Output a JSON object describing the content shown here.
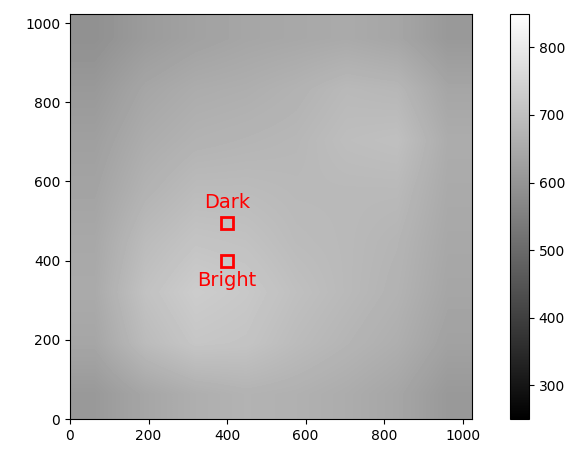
{
  "chart_data": {
    "type": "heatmap",
    "xlim": [
      0,
      1024
    ],
    "ylim": [
      0,
      1024
    ],
    "xticks": [
      0,
      200,
      400,
      600,
      800,
      1000
    ],
    "yticks": [
      0,
      200,
      400,
      600,
      800,
      1000
    ],
    "cells": [
      [
        610,
        640,
        660,
        670,
        665,
        655,
        640,
        610
      ],
      [
        640,
        690,
        715,
        710,
        690,
        675,
        660,
        630
      ],
      [
        650,
        705,
        730,
        720,
        700,
        685,
        670,
        640
      ],
      [
        645,
        690,
        710,
        705,
        690,
        685,
        675,
        645
      ],
      [
        635,
        670,
        690,
        690,
        685,
        685,
        685,
        650
      ],
      [
        625,
        655,
        670,
        675,
        680,
        695,
        700,
        655
      ],
      [
        610,
        640,
        655,
        660,
        670,
        685,
        680,
        640
      ],
      [
        590,
        615,
        630,
        640,
        645,
        650,
        640,
        610
      ]
    ],
    "colorbar_range": [
      250,
      850
    ],
    "colorbar_ticks": [
      300,
      400,
      500,
      600,
      700,
      800
    ],
    "annotations": [
      {
        "text": "Dark",
        "x": 400,
        "y": 495,
        "color": "#ff0000"
      },
      {
        "text": "Bright",
        "x": 400,
        "y": 400,
        "color": "#ff0000"
      }
    ]
  }
}
